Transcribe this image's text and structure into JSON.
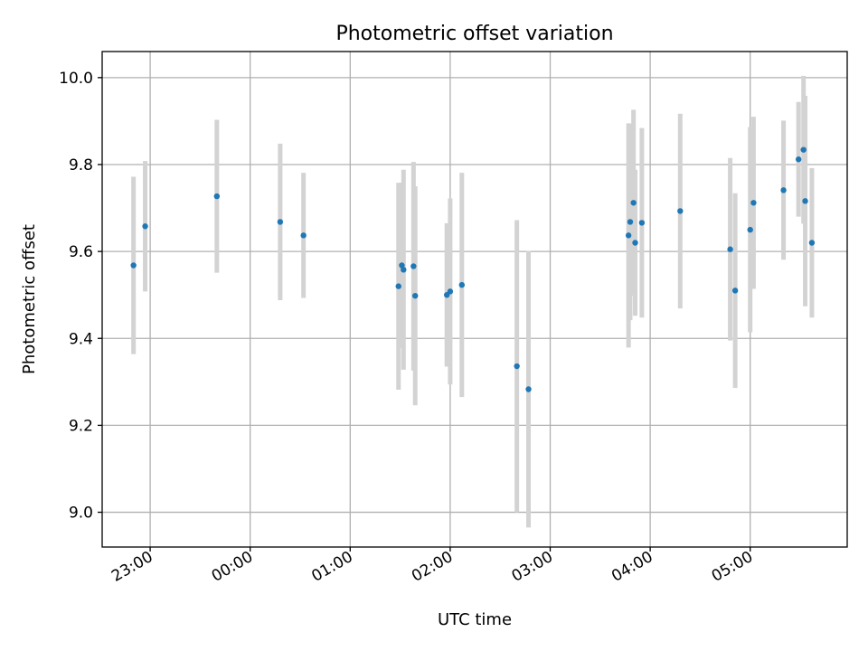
{
  "chart_data": {
    "type": "scatter",
    "title": "Photometric offset variation",
    "xlabel": "UTC time",
    "ylabel": "Photometric offset",
    "x_unit": "UTC time of night (hours after 00:00; values before midnight are negative)",
    "xlim": [
      -1.48,
      5.97
    ],
    "ylim": [
      8.92,
      10.06
    ],
    "grid": true,
    "legend": "none",
    "x_ticks": [
      {
        "value": -1.0,
        "label": "23:00"
      },
      {
        "value": 0.0,
        "label": "00:00"
      },
      {
        "value": 1.0,
        "label": "01:00"
      },
      {
        "value": 2.0,
        "label": "02:00"
      },
      {
        "value": 3.0,
        "label": "03:00"
      },
      {
        "value": 4.0,
        "label": "04:00"
      },
      {
        "value": 5.0,
        "label": "05:00"
      }
    ],
    "y_ticks": [
      {
        "value": 9.0,
        "label": "9.0"
      },
      {
        "value": 9.2,
        "label": "9.2"
      },
      {
        "value": 9.4,
        "label": "9.4"
      },
      {
        "value": 9.6,
        "label": "9.6"
      },
      {
        "value": 9.8,
        "label": "9.8"
      },
      {
        "value": 10.0,
        "label": "10.0"
      }
    ],
    "marker_color": "#1f77b4",
    "errorbar_color": "#d3d3d3",
    "points": [
      {
        "time": "22:50",
        "y": 9.568,
        "err": 0.204
      },
      {
        "time": "22:57",
        "y": 9.658,
        "err": 0.15
      },
      {
        "time": "23:40",
        "y": 9.727,
        "err": 0.176
      },
      {
        "time": "00:18",
        "y": 9.668,
        "err": 0.18
      },
      {
        "time": "00:32",
        "y": 9.637,
        "err": 0.144
      },
      {
        "time": "01:29",
        "y": 9.52,
        "err": 0.238
      },
      {
        "time": "01:31",
        "y": 9.568,
        "err": 0.19
      },
      {
        "time": "01:32",
        "y": 9.558,
        "err": 0.23
      },
      {
        "time": "01:38",
        "y": 9.566,
        "err": 0.24
      },
      {
        "time": "01:39",
        "y": 9.498,
        "err": 0.252
      },
      {
        "time": "01:58",
        "y": 9.5,
        "err": 0.165
      },
      {
        "time": "02:00",
        "y": 9.508,
        "err": 0.214
      },
      {
        "time": "02:07",
        "y": 9.523,
        "err": 0.258
      },
      {
        "time": "02:40",
        "y": 9.336,
        "err": 0.336
      },
      {
        "time": "02:47",
        "y": 9.283,
        "err": 0.318
      },
      {
        "time": "03:47",
        "y": 9.637,
        "err": 0.258
      },
      {
        "time": "03:48",
        "y": 9.668,
        "err": 0.226
      },
      {
        "time": "03:50",
        "y": 9.712,
        "err": 0.214
      },
      {
        "time": "03:51",
        "y": 9.62,
        "err": 0.168
      },
      {
        "time": "03:55",
        "y": 9.666,
        "err": 0.218
      },
      {
        "time": "04:18",
        "y": 9.693,
        "err": 0.224
      },
      {
        "time": "04:48",
        "y": 9.605,
        "err": 0.21
      },
      {
        "time": "04:51",
        "y": 9.51,
        "err": 0.224
      },
      {
        "time": "05:00",
        "y": 9.65,
        "err": 0.236
      },
      {
        "time": "05:02",
        "y": 9.712,
        "err": 0.198
      },
      {
        "time": "05:20",
        "y": 9.741,
        "err": 0.16
      },
      {
        "time": "05:29",
        "y": 9.812,
        "err": 0.132
      },
      {
        "time": "05:32",
        "y": 9.834,
        "err": 0.17
      },
      {
        "time": "05:33",
        "y": 9.716,
        "err": 0.242
      },
      {
        "time": "05:37",
        "y": 9.62,
        "err": 0.172
      }
    ]
  }
}
